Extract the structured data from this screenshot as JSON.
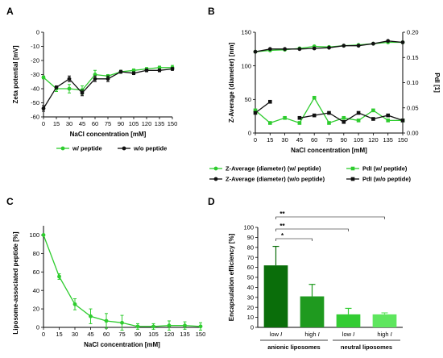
{
  "colors": {
    "green": "#2ecc2e",
    "black": "#111111",
    "bar_dark": "#0a6e0a",
    "bar_mid": "#1f9a1f",
    "bar_light": "#33cc33",
    "bar_lightest": "#5ee65e"
  },
  "chart_data": [
    {
      "panel": "A",
      "type": "line",
      "xlabel": "NaCl concentration [mM]",
      "ylabel": "Zeta potential [mV]",
      "xlim": [
        0,
        150
      ],
      "ylim": [
        -60,
        0
      ],
      "x": [
        0,
        15,
        30,
        45,
        60,
        75,
        90,
        105,
        120,
        135,
        150
      ],
      "xticks": [
        "0",
        "15",
        "30",
        "45",
        "60",
        "75",
        "90",
        "105",
        "120",
        "135",
        "150"
      ],
      "yticks": [
        "0",
        "-10",
        "-20",
        "-30",
        "-40",
        "-50",
        "-60"
      ],
      "series": [
        {
          "name": "w/ peptide",
          "color": "green",
          "values": [
            -32,
            -40,
            -40,
            -41,
            -30,
            -31,
            -28,
            -27,
            -26,
            -25,
            -25
          ],
          "errors": [
            1,
            2,
            3,
            3,
            3,
            1,
            1,
            1,
            1,
            1,
            1.5
          ]
        },
        {
          "name": "w/o peptide",
          "color": "black",
          "values": [
            -54,
            -39,
            -33,
            -43,
            -33,
            -33,
            -28,
            -29,
            -27,
            -27,
            -26
          ],
          "errors": [
            2,
            1,
            2,
            2,
            2,
            2,
            1,
            1,
            1,
            1,
            1
          ]
        }
      ],
      "legend_position": "bottom"
    },
    {
      "panel": "B",
      "type": "line",
      "xlabel": "NaCl concentration [mM]",
      "ylabel": "Z-Average (diameter) [nm]",
      "ylabel_right": "PdI [1]",
      "xlim": [
        0,
        150
      ],
      "ylim": [
        0,
        150
      ],
      "ylim_right": [
        0,
        0.2
      ],
      "x": [
        0,
        15,
        30,
        45,
        60,
        75,
        90,
        105,
        120,
        135,
        150
      ],
      "xticks": [
        "0",
        "15",
        "30",
        "45",
        "60",
        "75",
        "90",
        "105",
        "120",
        "135",
        "150"
      ],
      "yticks": [
        "0",
        "50",
        "100",
        "150"
      ],
      "yticks_right": [
        "0.00",
        "0.05",
        "0.10",
        "0.15",
        "0.20"
      ],
      "series": [
        {
          "name": "Z-Average (diameter) (w/ peptide)",
          "color": "green",
          "axis": "left",
          "marker": "circle",
          "values": [
            121,
            123,
            124,
            126,
            129,
            128,
            130,
            131,
            133,
            135,
            135
          ]
        },
        {
          "name": "Z-Average (diameter) (w/o peptide)",
          "color": "black",
          "axis": "left",
          "marker": "circle",
          "values": [
            121,
            125,
            125,
            125,
            126,
            127,
            130,
            130,
            133,
            137,
            135
          ]
        },
        {
          "name": "PdI (w/ peptide)",
          "color": "green",
          "axis": "right",
          "marker": "square",
          "values": [
            0.045,
            0.02,
            0.03,
            0.02,
            0.07,
            0.02,
            0.03,
            0.025,
            0.045,
            0.025,
            0.025
          ]
        },
        {
          "name": "PdI (w/o peptide)",
          "color": "black",
          "axis": "right",
          "marker": "square",
          "values": [
            0.04,
            0.062,
            null,
            0.03,
            0.035,
            0.04,
            0.022,
            0.04,
            0.028,
            0.035,
            0.025
          ]
        }
      ],
      "legend_position": "bottom"
    },
    {
      "panel": "C",
      "type": "line",
      "xlabel": "NaCl concentration [mM]",
      "ylabel": "Liposome-associated peptide [%]",
      "xlim": [
        0,
        150
      ],
      "ylim": [
        0,
        110
      ],
      "x": [
        0,
        15,
        30,
        45,
        60,
        75,
        90,
        105,
        120,
        135,
        150
      ],
      "xticks": [
        "0",
        "15",
        "30",
        "45",
        "60",
        "75",
        "90",
        "105",
        "120",
        "135",
        "150"
      ],
      "yticks": [
        "0",
        "20",
        "40",
        "60",
        "80",
        "100"
      ],
      "series": [
        {
          "name": "",
          "color": "green",
          "values": [
            100,
            55,
            25,
            12,
            7,
            5,
            1,
            1,
            2,
            2,
            1
          ],
          "errors": [
            0,
            3,
            6,
            8,
            8,
            8,
            3,
            3,
            5,
            4,
            4
          ]
        }
      ]
    },
    {
      "panel": "D",
      "type": "bar",
      "ylabel": "Encapsulation efficiency [%]",
      "ylim": [
        0,
        100
      ],
      "yticks": [
        "0",
        "10",
        "20",
        "30",
        "40",
        "50",
        "60",
        "70",
        "80",
        "90",
        "100"
      ],
      "categories": [
        "low I",
        "high I",
        "low I",
        "high I"
      ],
      "category_prefix": [
        "low",
        "high",
        "low",
        "high"
      ],
      "category_symbol": "I",
      "values": [
        62,
        31,
        13,
        13
      ],
      "errors": [
        19,
        12,
        6,
        1.5
      ],
      "bar_colors": [
        "bar_dark",
        "bar_mid",
        "bar_light",
        "bar_lightest"
      ],
      "groups": [
        {
          "label": "anionic liposomes",
          "members": [
            0,
            1
          ]
        },
        {
          "label": "neutral liposomes",
          "members": [
            2,
            3
          ]
        }
      ],
      "significance": [
        {
          "from": 0,
          "to": 3,
          "label": "**"
        },
        {
          "from": 0,
          "to": 2,
          "label": "**"
        },
        {
          "from": 0,
          "to": 1,
          "label": "*"
        }
      ]
    }
  ]
}
